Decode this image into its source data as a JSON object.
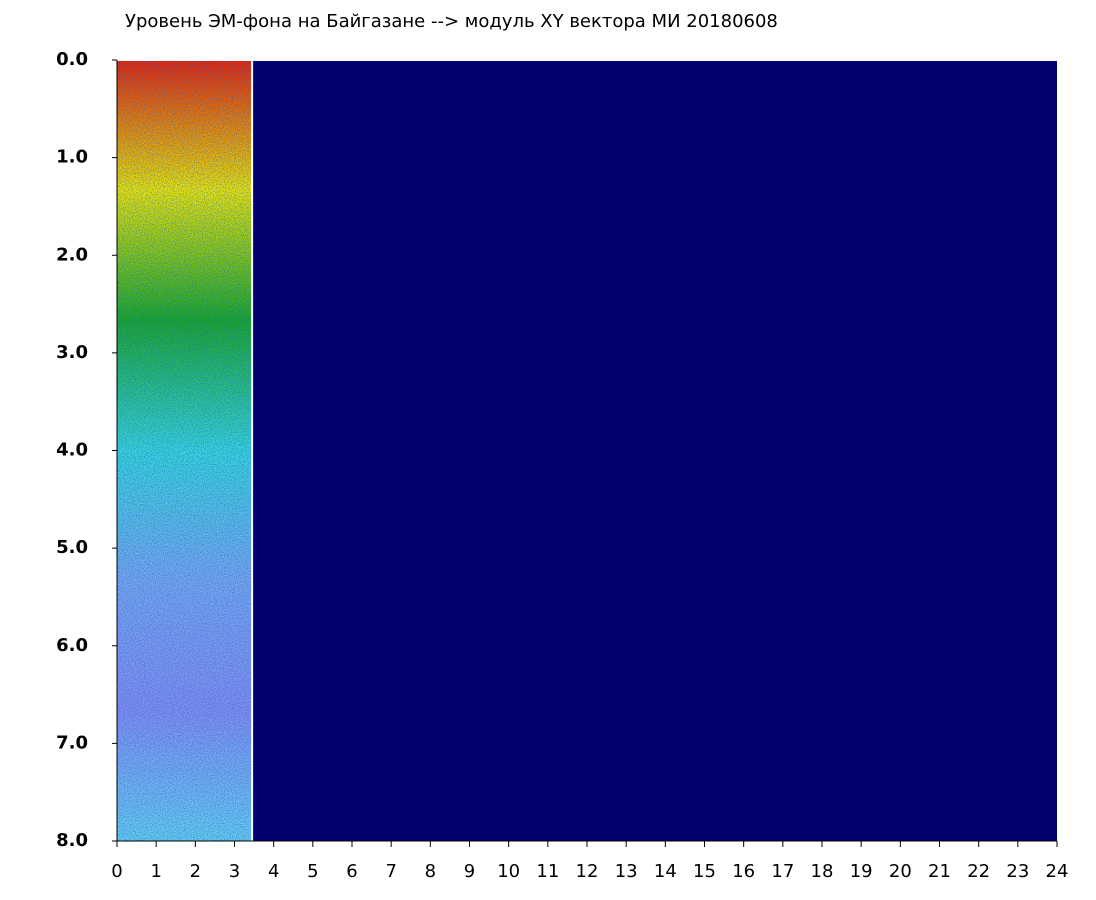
{
  "chart_data": {
    "type": "heatmap",
    "title": "Уровень ЭМ-фона на Байгазане  --> модуль XY вектора МИ  20180608",
    "xlim": [
      0,
      24
    ],
    "xticks": [
      0,
      1,
      2,
      3,
      4,
      5,
      6,
      7,
      8,
      9,
      10,
      11,
      12,
      13,
      14,
      15,
      16,
      17,
      18,
      19,
      20,
      21,
      22,
      23,
      24
    ],
    "ylim": [
      0,
      8
    ],
    "y_inverted": true,
    "yticks": [
      {
        "value": 0,
        "label": "0.0"
      },
      {
        "value": 1,
        "label": "1.0"
      },
      {
        "value": 2,
        "label": "2.0"
      },
      {
        "value": 3,
        "label": "3.0"
      },
      {
        "value": 4,
        "label": "4.0"
      },
      {
        "value": 5,
        "label": "5.0"
      },
      {
        "value": 6,
        "label": "6.0"
      },
      {
        "value": 7,
        "label": "7.0"
      },
      {
        "value": 8,
        "label": "8.0"
      }
    ],
    "filled_x": [
      0,
      3.45
    ],
    "background_color": "#000070",
    "colormap": [
      "#ee2200",
      "#f4e800",
      "#1fa81f",
      "#3ed8d8",
      "#7fa8ee",
      "#8a8ff0",
      "#6fd0ee"
    ]
  }
}
